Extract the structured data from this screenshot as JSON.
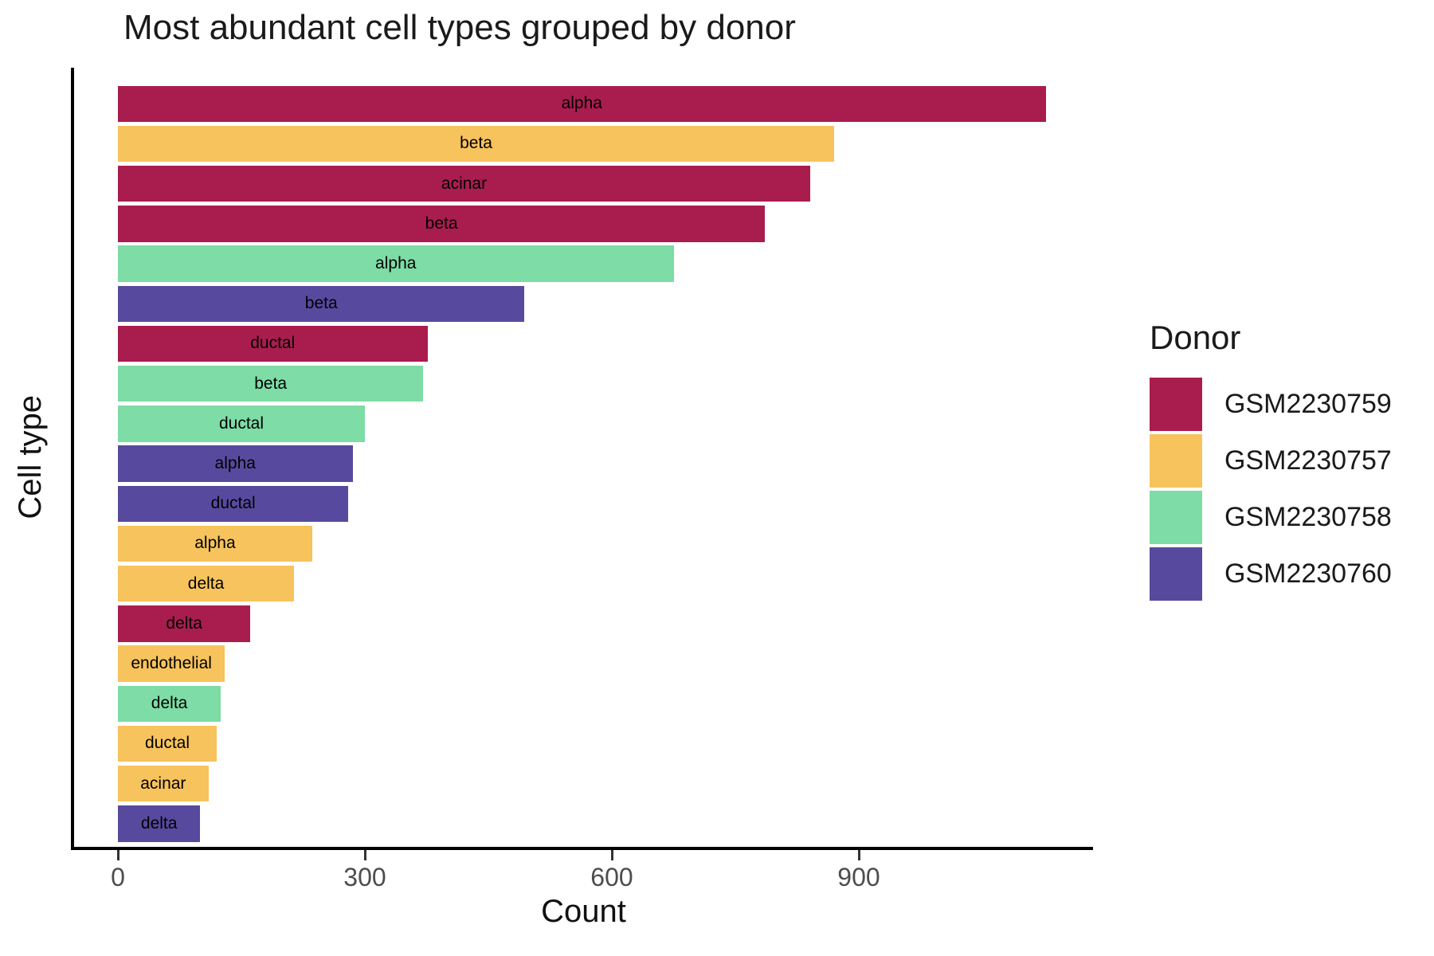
{
  "chart_data": {
    "type": "bar",
    "orientation": "horizontal",
    "title": "Most abundant cell types grouped by donor",
    "xlabel": "Count",
    "ylabel": "Cell type",
    "xticks": [
      0,
      300,
      600,
      900
    ],
    "xlim": [
      0,
      1185
    ],
    "grid": false,
    "legend_title": "Donor",
    "legend_position": "right",
    "donor_colors": {
      "GSM2230759": "#A91D4E",
      "GSM2230757": "#F7C35C",
      "GSM2230758": "#7EDCA6",
      "GSM2230760": "#574A9E"
    },
    "legend_items": [
      "GSM2230759",
      "GSM2230757",
      "GSM2230758",
      "GSM2230760"
    ],
    "bars": [
      {
        "label": "alpha",
        "donor": "GSM2230759",
        "value": 1127
      },
      {
        "label": "beta",
        "donor": "GSM2230757",
        "value": 870
      },
      {
        "label": "acinar",
        "donor": "GSM2230759",
        "value": 841
      },
      {
        "label": "beta",
        "donor": "GSM2230759",
        "value": 786
      },
      {
        "label": "alpha",
        "donor": "GSM2230758",
        "value": 675
      },
      {
        "label": "beta",
        "donor": "GSM2230760",
        "value": 494
      },
      {
        "label": "ductal",
        "donor": "GSM2230759",
        "value": 376
      },
      {
        "label": "beta",
        "donor": "GSM2230758",
        "value": 371
      },
      {
        "label": "ductal",
        "donor": "GSM2230758",
        "value": 300
      },
      {
        "label": "alpha",
        "donor": "GSM2230760",
        "value": 285
      },
      {
        "label": "ductal",
        "donor": "GSM2230760",
        "value": 280
      },
      {
        "label": "alpha",
        "donor": "GSM2230757",
        "value": 236
      },
      {
        "label": "delta",
        "donor": "GSM2230757",
        "value": 214
      },
      {
        "label": "delta",
        "donor": "GSM2230759",
        "value": 161
      },
      {
        "label": "endothelial",
        "donor": "GSM2230757",
        "value": 130
      },
      {
        "label": "delta",
        "donor": "GSM2230758",
        "value": 125
      },
      {
        "label": "ductal",
        "donor": "GSM2230757",
        "value": 120
      },
      {
        "label": "acinar",
        "donor": "GSM2230757",
        "value": 110
      },
      {
        "label": "delta",
        "donor": "GSM2230760",
        "value": 100
      }
    ],
    "colors": {
      "axis_line": "#000000",
      "tick_label": "#4d4d4d",
      "text": "#1a1a1a",
      "bar_label": "#000000"
    }
  }
}
